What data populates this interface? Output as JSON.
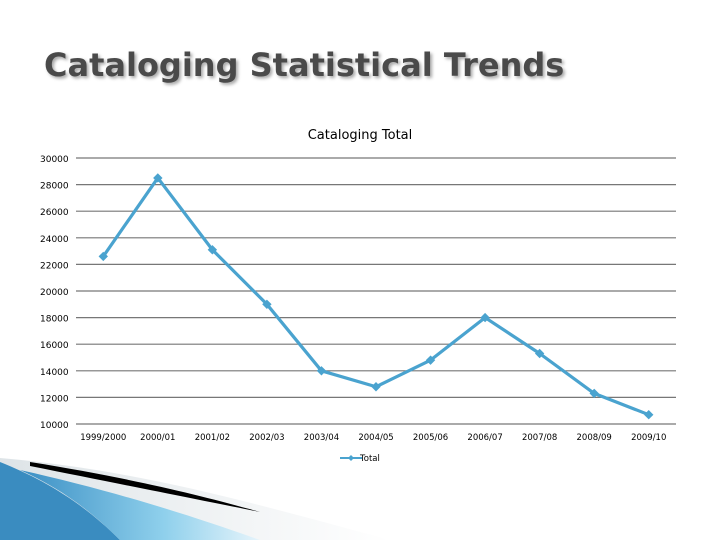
{
  "slide": {
    "title": "Cataloging Statistical Trends"
  },
  "colors": {
    "series": "#4aa3cf",
    "grid": "#777777",
    "text": "#000000",
    "title": "#4a4a4a",
    "accent_blue": "#5aaed6",
    "accent_dark": "#000000"
  },
  "chart_data": {
    "type": "line",
    "title": "Cataloging Total",
    "xlabel": "",
    "ylabel": "",
    "categories": [
      "1999/2000",
      "2000/01",
      "2001/02",
      "2002/03",
      "2003/04",
      "2004/05",
      "2005/06",
      "2006/07",
      "2007/08",
      "2008/09",
      "2009/10"
    ],
    "series": [
      {
        "name": "Total",
        "values": [
          22600,
          28500,
          23100,
          19000,
          14000,
          12800,
          14800,
          18000,
          15300,
          12300,
          10700
        ]
      }
    ],
    "ylim": [
      10000,
      30000
    ],
    "yticks": [
      10000,
      12000,
      14000,
      16000,
      18000,
      20000,
      22000,
      24000,
      26000,
      28000,
      30000
    ],
    "grid": true,
    "legend": "bottom",
    "marker": "diamond"
  }
}
